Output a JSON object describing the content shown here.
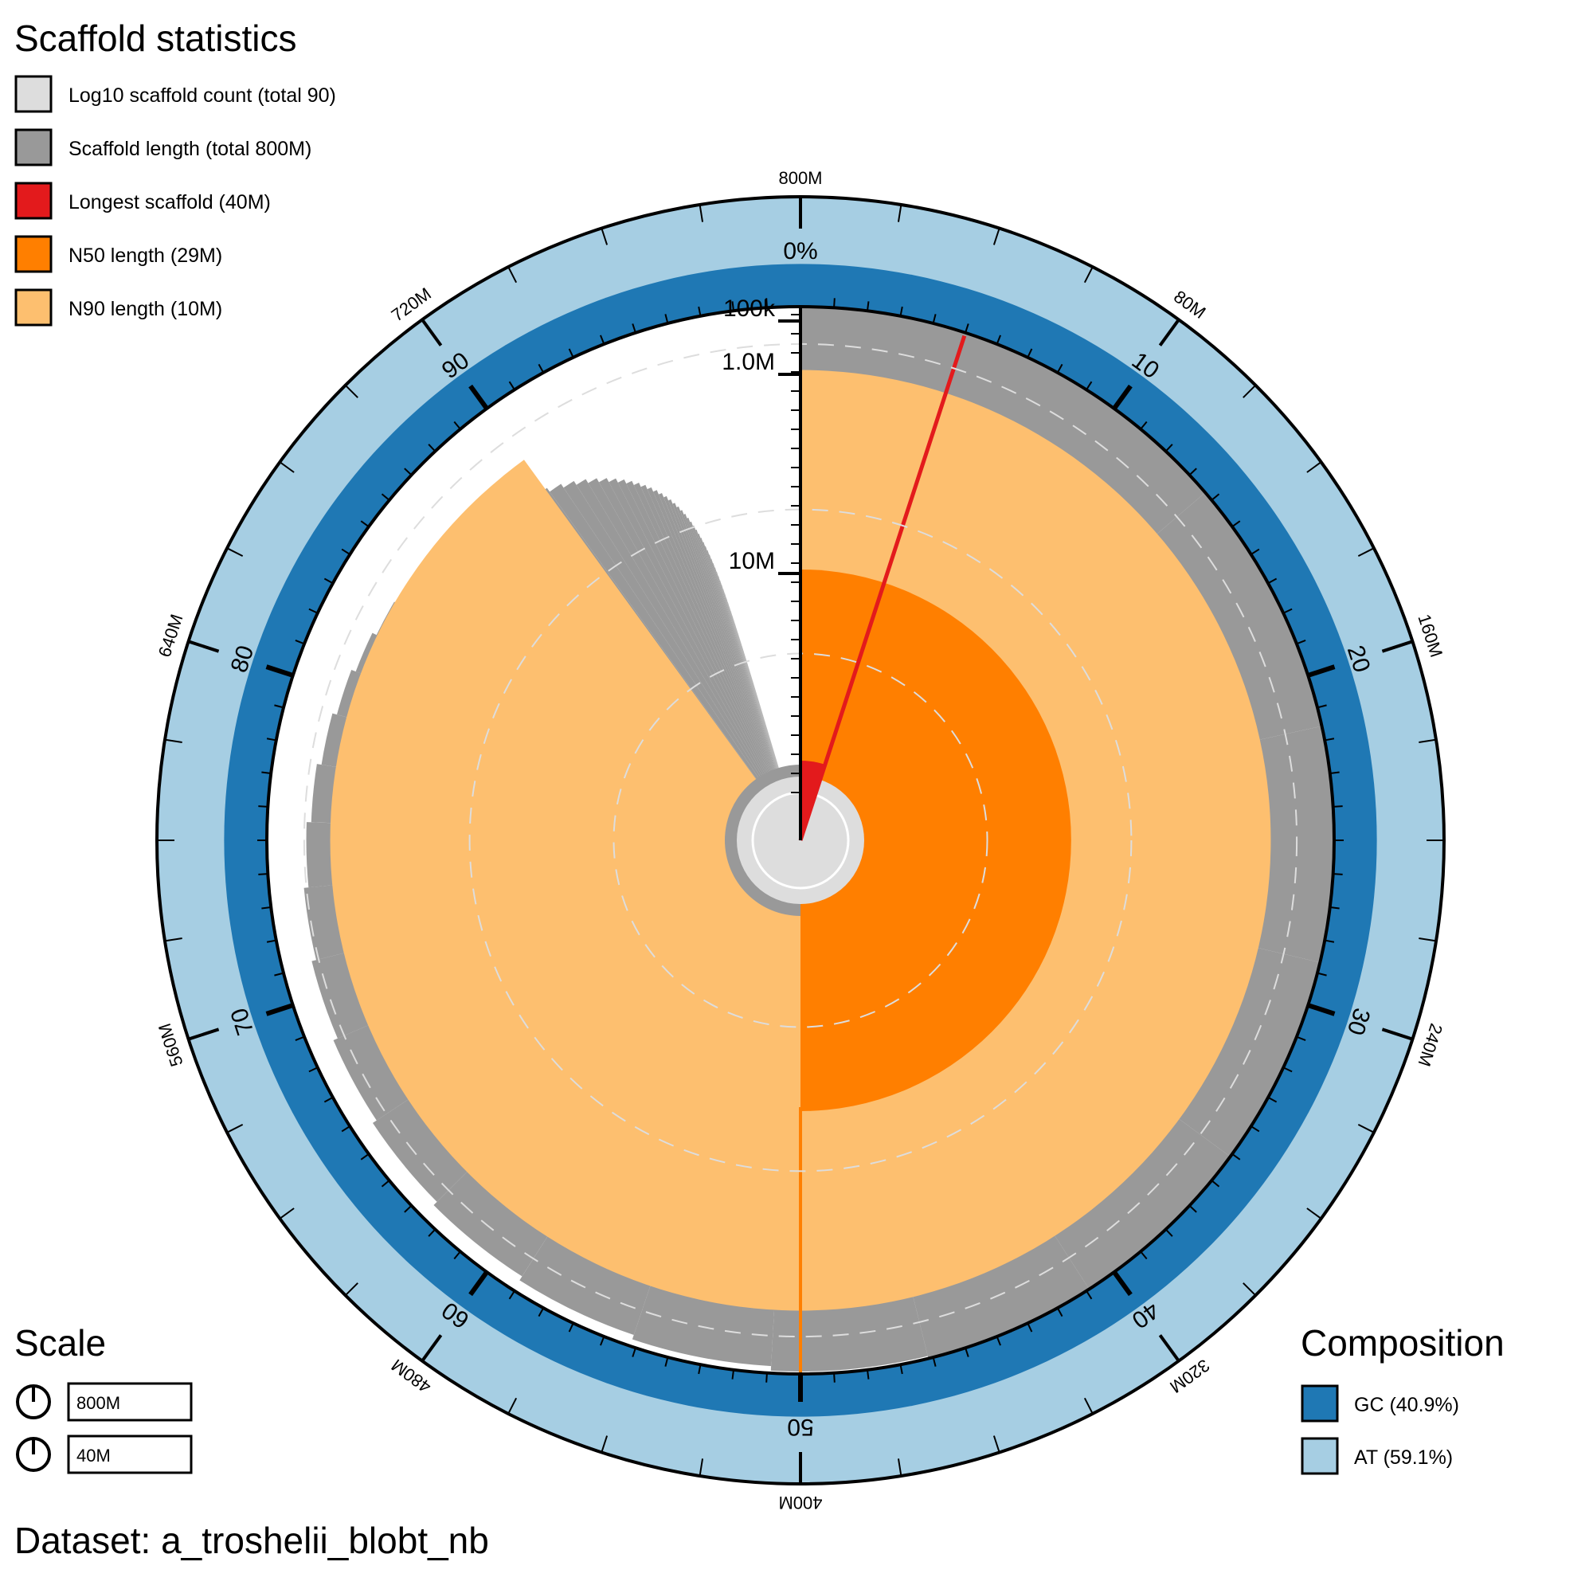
{
  "chart_data": {
    "type": "snail",
    "title": "Scaffold statistics",
    "legend": [
      {
        "label": "Log10 scaffold count (total 90)",
        "color": "#dddddd"
      },
      {
        "label": "Scaffold length (total 800M)",
        "color": "#999999"
      },
      {
        "label": "Longest scaffold (40M)",
        "color": "#e31a1c"
      },
      {
        "label": "N50 length (29M)",
        "color": "#ff7f00"
      },
      {
        "label": "N90 length (10M)",
        "color": "#fdbf6f"
      }
    ],
    "total_length": 800000000,
    "scaffold_count": 90,
    "longest_scaffold": 40000000,
    "n50_length": 29000000,
    "n90_length": 10000000,
    "outer_axis_ticks": [
      "800M",
      "80M",
      "160M",
      "240M",
      "320M",
      "400M",
      "480M",
      "560M",
      "640M",
      "720M"
    ],
    "percentile_ticks": [
      "10",
      "20",
      "30",
      "40",
      "50",
      "60",
      "70",
      "80",
      "90"
    ],
    "radial_axis_ticks": [
      "100k",
      "1.0M",
      "10M"
    ],
    "gc_zero_label": "0%",
    "composition": {
      "title": "Composition",
      "gc": {
        "label": "GC (40.9%)",
        "value": 40.9,
        "color": "#1f78b4"
      },
      "at": {
        "label": "AT (59.1%)",
        "value": 59.1,
        "color": "#a6cee3"
      }
    },
    "scale": {
      "title": "Scale",
      "items": [
        {
          "label": "800M"
        },
        {
          "label": "40M"
        }
      ]
    },
    "dataset_label": "Dataset: a_troshelii_blobt_nb"
  }
}
